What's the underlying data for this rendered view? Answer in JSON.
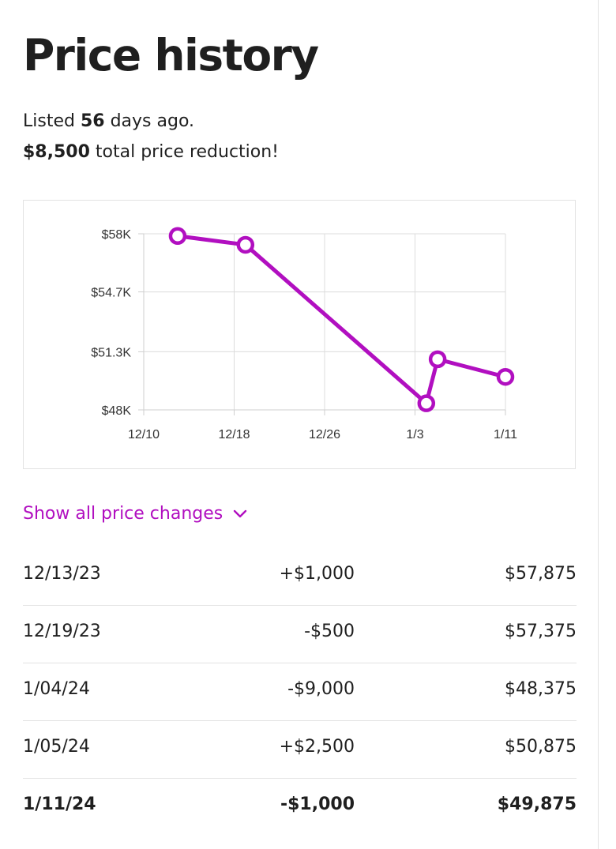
{
  "header": {
    "title": "Price history"
  },
  "summary": {
    "listed_prefix": "Listed ",
    "listed_days": "56",
    "listed_suffix": " days ago.",
    "reduction_amount": "$8,500",
    "reduction_suffix": " total price reduction!"
  },
  "chart_data": {
    "type": "line",
    "x_ticks": [
      "12/10",
      "12/18",
      "12/26",
      "1/3",
      "1/11"
    ],
    "x_ticks_days": [
      0,
      8,
      16,
      24,
      32
    ],
    "y_ticks": [
      "$58K",
      "$54.7K",
      "$51.3K",
      "$48K"
    ],
    "y_ticks_values": [
      58000,
      54700,
      51300,
      48000
    ],
    "ylim": [
      48000,
      58000
    ],
    "grid": true,
    "color": "#b10fc0",
    "points": [
      {
        "date": "12/13/23",
        "day": 3,
        "value": 57875
      },
      {
        "date": "12/19/23",
        "day": 9,
        "value": 57375
      },
      {
        "date": "1/04/24",
        "day": 25,
        "value": 48375
      },
      {
        "date": "1/05/24",
        "day": 26,
        "value": 50875
      },
      {
        "date": "1/11/24",
        "day": 32,
        "value": 49875
      }
    ]
  },
  "toggle": {
    "label": "Show all price changes",
    "icon": "chevron-down-icon"
  },
  "changes": [
    {
      "date": "12/13/23",
      "change": "+$1,000",
      "price": "$57,875",
      "bold": false
    },
    {
      "date": "12/19/23",
      "change": "-$500",
      "price": "$57,375",
      "bold": false
    },
    {
      "date": "1/04/24",
      "change": "-$9,000",
      "price": "$48,375",
      "bold": false
    },
    {
      "date": "1/05/24",
      "change": "+$2,500",
      "price": "$50,875",
      "bold": false
    },
    {
      "date": "1/11/24",
      "change": "-$1,000",
      "price": "$49,875",
      "bold": true
    }
  ]
}
